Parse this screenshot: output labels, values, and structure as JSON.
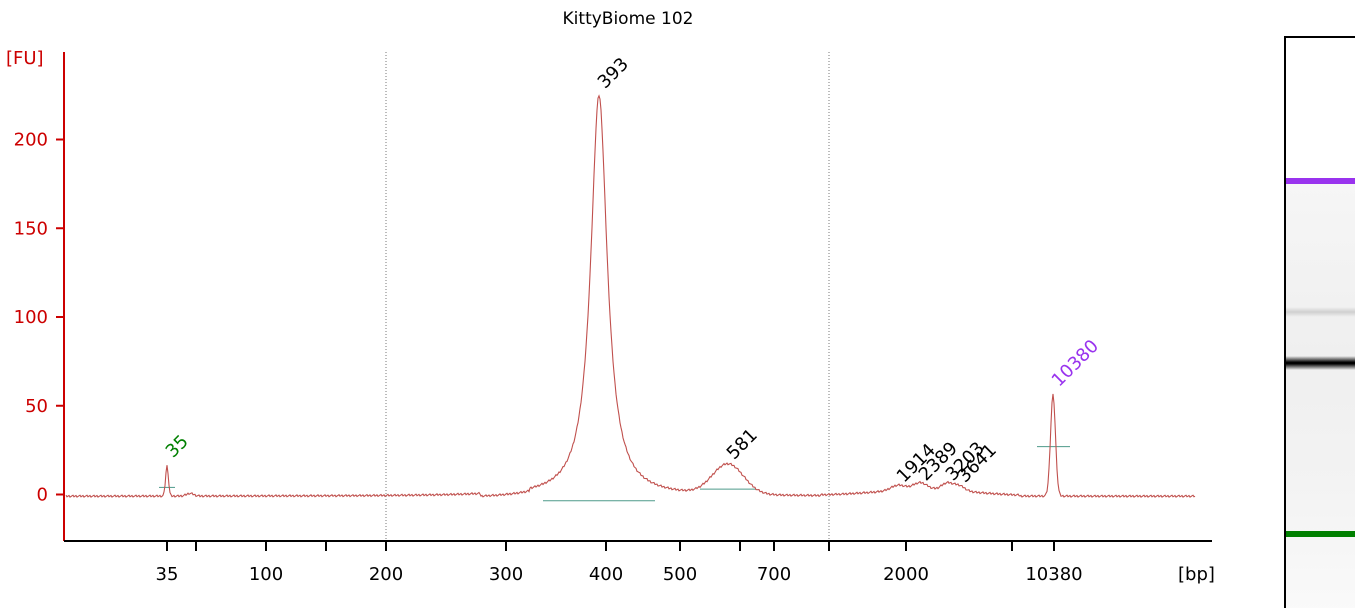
{
  "chart_data": {
    "type": "line",
    "title": "KittyBiome 102",
    "ylabel": "[FU]",
    "xlabel": "[bp]",
    "ylim": [
      -25,
      240
    ],
    "yticks": [
      0,
      50,
      100,
      150,
      200
    ],
    "xticks": [
      "35",
      "100",
      "200",
      "300",
      "400",
      "500",
      "700",
      "2000",
      "10380"
    ],
    "grid": false,
    "baseline": -1,
    "peaks": [
      {
        "label": "35",
        "size_bp": 35,
        "height": 18,
        "color": "#008000",
        "type": "lower-marker"
      },
      {
        "label": "393",
        "size_bp": 393,
        "height": 226,
        "color": "#000000"
      },
      {
        "label": "581",
        "size_bp": 581,
        "height": 17,
        "color": "#000000"
      },
      {
        "label": "1914",
        "size_bp": 1914,
        "height": 4,
        "color": "#000000"
      },
      {
        "label": "2389",
        "size_bp": 2389,
        "height": 5,
        "color": "#000000"
      },
      {
        "label": "3203",
        "size_bp": 3203,
        "height": 5,
        "color": "#000000"
      },
      {
        "label": "3641",
        "size_bp": 3641,
        "height": 4,
        "color": "#000000"
      },
      {
        "label": "10380",
        "size_bp": 10380,
        "height": 58,
        "color": "#9933ee",
        "type": "upper-marker"
      }
    ]
  },
  "colors": {
    "trace": "#c0504d",
    "axis": "#cc0000",
    "baseline": "#4e9a8a",
    "upper_marker": "#9933ee",
    "lower_marker": "#008000"
  },
  "gel": {
    "bands": [
      {
        "name": "upper-marker-band",
        "color": "#9933ee",
        "fraction": 0.25
      },
      {
        "name": "faint-band",
        "color": "#d0d0d0",
        "fraction": 0.48
      },
      {
        "name": "main-band",
        "color": "#000000",
        "fraction": 0.57
      },
      {
        "name": "lower-marker-band",
        "color": "#008000",
        "fraction": 0.87
      }
    ]
  }
}
